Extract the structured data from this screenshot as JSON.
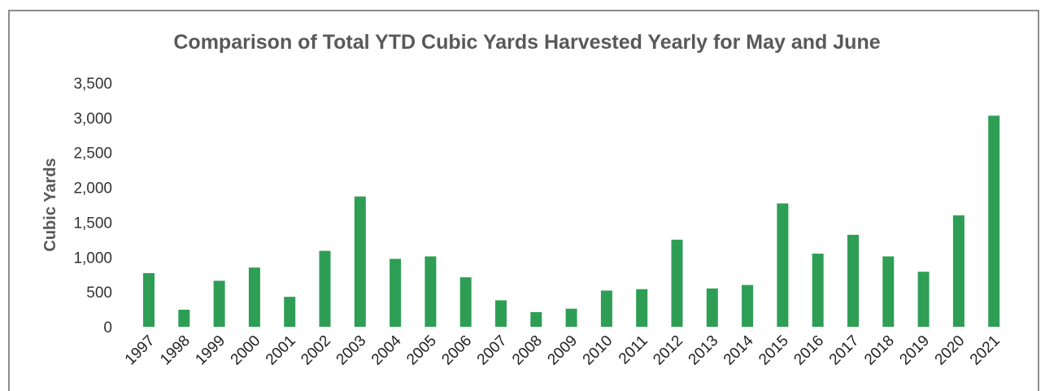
{
  "chart_data": {
    "type": "bar",
    "title": "Comparison of Total YTD Cubic Yards Harvested Yearly for May and June",
    "xlabel": "",
    "ylabel": "Cubic Yards",
    "ylim": [
      0,
      3500
    ],
    "yticks": [
      0,
      500,
      1000,
      1500,
      2000,
      2500,
      3000,
      3500
    ],
    "ytick_labels": [
      "0",
      "500",
      "1,000",
      "1,500",
      "2,000",
      "2,500",
      "3,000",
      "3,500"
    ],
    "grid": false,
    "legend": "none",
    "bar_color": "#2e9e55",
    "categories": [
      "1997",
      "1998",
      "1999",
      "2000",
      "2001",
      "2002",
      "2003",
      "2004",
      "2005",
      "2006",
      "2007",
      "2008",
      "2009",
      "2010",
      "2011",
      "2012",
      "2013",
      "2014",
      "2015",
      "2016",
      "2017",
      "2018",
      "2019",
      "2020",
      "2021"
    ],
    "values": [
      770,
      245,
      660,
      850,
      430,
      1090,
      1870,
      975,
      1010,
      710,
      380,
      210,
      260,
      520,
      540,
      1250,
      550,
      600,
      1770,
      1050,
      1320,
      1010,
      790,
      1600,
      3030
    ]
  }
}
